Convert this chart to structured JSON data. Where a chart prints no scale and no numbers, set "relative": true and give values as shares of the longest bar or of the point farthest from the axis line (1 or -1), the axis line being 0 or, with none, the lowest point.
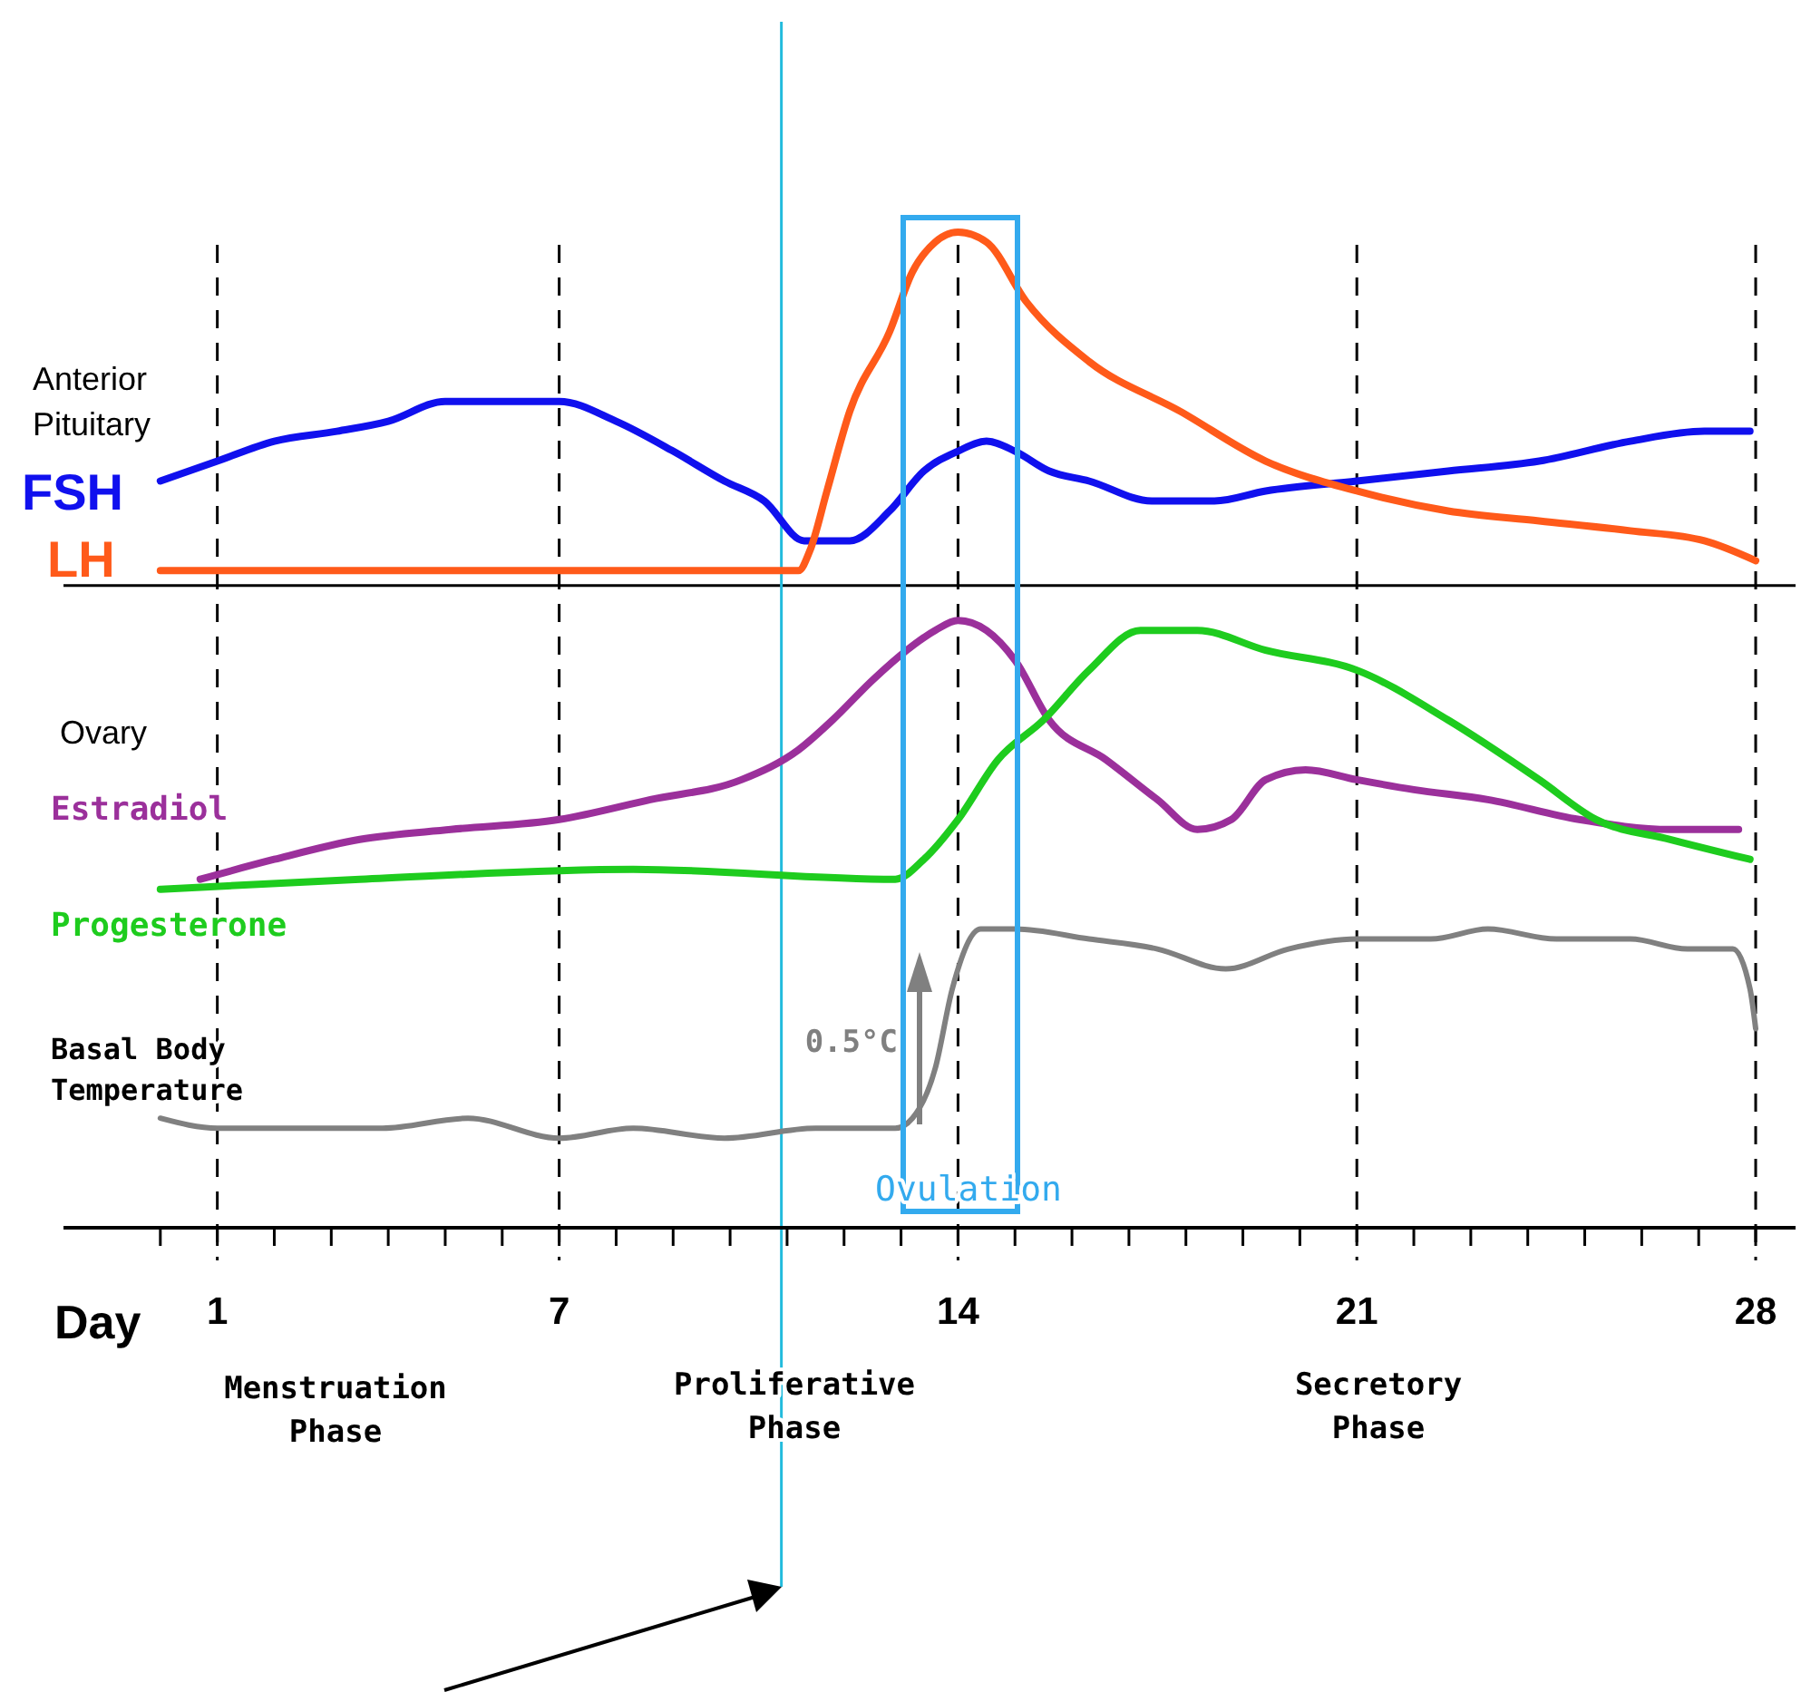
{
  "chart_data": {
    "type": "line",
    "relative": true,
    "xlabel": "Day",
    "xlim": [
      -1.7,
      28.7
    ],
    "xticks": [
      {
        "value": 0,
        "label": null
      },
      1,
      {
        "value": 2,
        "label": null
      },
      {
        "value": 3,
        "label": null
      },
      {
        "value": 4,
        "label": null
      },
      {
        "value": 5,
        "label": null
      },
      {
        "value": 6,
        "label": null
      },
      7,
      {
        "value": 8,
        "label": null
      },
      {
        "value": 9,
        "label": null
      },
      {
        "value": 10,
        "label": null
      },
      {
        "value": 11,
        "label": null
      },
      {
        "value": 12,
        "label": null
      },
      {
        "value": 13,
        "label": null
      },
      14,
      {
        "value": 15,
        "label": null
      },
      {
        "value": 16,
        "label": null
      },
      {
        "value": 17,
        "label": null
      },
      {
        "value": 18,
        "label": null
      },
      {
        "value": 19,
        "label": null
      },
      {
        "value": 20,
        "label": null
      },
      21,
      {
        "value": 22,
        "label": null
      },
      {
        "value": 23,
        "label": null
      },
      {
        "value": 24,
        "label": null
      },
      {
        "value": 25,
        "label": null
      },
      {
        "value": 26,
        "label": null
      },
      {
        "value": 27,
        "label": null
      },
      28
    ],
    "tick_labels": "x",
    "marker": "none",
    "line_style": "solid",
    "series": [
      {
        "name": "FSH",
        "color": "#1010ee",
        "x": [
          0,
          1,
          2,
          3.1,
          4,
          5,
          6.1,
          7,
          8,
          9,
          9.9,
          10.6,
          11.3,
          12.1,
          12.8,
          13.4,
          14,
          14.5,
          15,
          15.6,
          16.3,
          17.4,
          18.5,
          19.4,
          21,
          22.6,
          24.2,
          25.8,
          27.1,
          27.9
        ],
        "values": [
          0.75,
          0.77,
          0.79,
          0.8,
          0.81,
          0.83,
          0.83,
          0.83,
          0.81,
          0.78,
          0.75,
          0.73,
          0.69,
          0.69,
          0.72,
          0.76,
          0.78,
          0.79,
          0.78,
          0.76,
          0.75,
          0.73,
          0.73,
          0.74,
          0.75,
          0.76,
          0.77,
          0.79,
          0.8,
          0.8
        ]
      },
      {
        "name": "LH",
        "color": "#ff5a1a",
        "x": [
          0,
          3.5,
          6.7,
          8.6,
          11.2,
          11.4,
          11.7,
          12.1,
          12.8,
          13.2,
          13.6,
          14,
          14.5,
          15.2,
          16.3,
          17.9,
          19.4,
          21,
          22.6,
          24.2,
          25.8,
          27.1,
          28
        ],
        "values": [
          0.66,
          0.66,
          0.66,
          0.66,
          0.66,
          0.68,
          0.74,
          0.82,
          0.9,
          0.96,
          0.99,
          1,
          0.99,
          0.93,
          0.87,
          0.82,
          0.77,
          0.74,
          0.72,
          0.71,
          0.7,
          0.69,
          0.67
        ]
      },
      {
        "name": "Estradiol",
        "color": "#9b309b",
        "x": [
          0.7,
          2,
          3.5,
          5.1,
          7,
          8.6,
          10.2,
          11.2,
          11.8,
          12.5,
          13.1,
          13.6,
          14,
          14.5,
          15,
          15.6,
          16.6,
          17.5,
          18.2,
          18.8,
          19.4,
          20.1,
          21,
          22,
          23.3,
          24.9,
          26.5,
          27.7
        ],
        "values": [
          0.35,
          0.37,
          0.39,
          0.4,
          0.41,
          0.43,
          0.45,
          0.48,
          0.51,
          0.55,
          0.58,
          0.6,
          0.61,
          0.6,
          0.57,
          0.51,
          0.47,
          0.43,
          0.4,
          0.41,
          0.45,
          0.46,
          0.45,
          0.44,
          0.43,
          0.41,
          0.4,
          0.4
        ]
      },
      {
        "name": "Progesterone",
        "color": "#1ecc1e",
        "x": [
          0,
          3.5,
          8.3,
          12.9,
          13.4,
          14,
          14.7,
          15.5,
          16.3,
          17.2,
          18.2,
          19.4,
          21,
          22.6,
          24.2,
          25.2,
          26.5,
          27.9
        ],
        "values": [
          0.34,
          0.35,
          0.36,
          0.35,
          0.37,
          0.41,
          0.47,
          0.51,
          0.56,
          0.6,
          0.6,
          0.58,
          0.56,
          0.51,
          0.45,
          0.41,
          0.39,
          0.37
        ]
      },
      {
        "name": "Basal Body Temperature",
        "color": "#808080",
        "x": [
          0,
          1,
          2.3,
          3.9,
          5.4,
          7,
          8.3,
          9.9,
          11.5,
          12.9,
          13.2,
          13.6,
          13.9,
          14.4,
          15,
          16.3,
          17.5,
          18.7,
          19.8,
          21,
          22.3,
          23.3,
          24.5,
          25.8,
          26.8,
          27.6,
          27.9,
          28
        ],
        "values": [
          0.11,
          0.1,
          0.1,
          0.1,
          0.11,
          0.09,
          0.1,
          0.09,
          0.1,
          0.1,
          0.11,
          0.16,
          0.24,
          0.3,
          0.3,
          0.29,
          0.28,
          0.26,
          0.28,
          0.29,
          0.29,
          0.3,
          0.29,
          0.29,
          0.28,
          0.28,
          0.24,
          0.2
        ]
      }
    ],
    "ref_lines": [
      {
        "axis": "x",
        "value": 1,
        "color": "#000000",
        "line_style": "dashed"
      },
      {
        "axis": "x",
        "value": 7,
        "color": "#000000",
        "line_style": "dashed"
      },
      {
        "axis": "x",
        "value": 14,
        "color": "#000000",
        "line_style": "dashed"
      },
      {
        "axis": "x",
        "value": 21,
        "color": "#000000",
        "line_style": "dashed"
      },
      {
        "axis": "x",
        "value": 28,
        "color": "#000000",
        "line_style": "dashed"
      },
      {
        "axis": "y",
        "value": 0.645,
        "color": "#000000",
        "line_style": "solid"
      },
      {
        "axis": "x",
        "value": 10.9,
        "color": "#22bbdd",
        "line_style": "solid"
      }
    ],
    "annotations": [
      "Anterior Pituitary",
      "Ovary",
      "0.5°C",
      "Menstruation Phase",
      "Proliferative Phase",
      "Secretory Phase",
      "Ovulation"
    ]
  }
}
